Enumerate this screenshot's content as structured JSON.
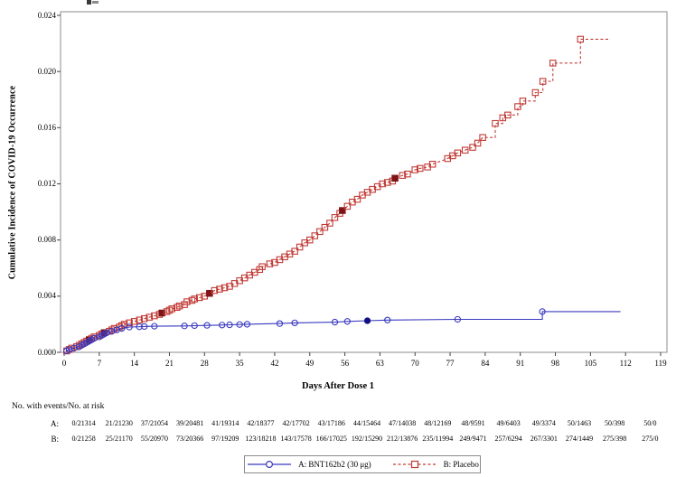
{
  "chart_data": {
    "type": "line",
    "title": "",
    "xlabel": "Days After Dose 1",
    "ylabel": "Cumulative Incidence of COVID-19 Occurrence",
    "xlim": [
      0,
      119
    ],
    "ylim": [
      0,
      0.024
    ],
    "x_ticks": [
      0,
      7,
      14,
      21,
      28,
      35,
      42,
      49,
      56,
      63,
      70,
      77,
      84,
      91,
      98,
      105,
      112,
      119
    ],
    "y_tick_labels": [
      "0.000",
      "0.004",
      "0.008",
      "0.012",
      "0.016",
      "0.020",
      "0.024"
    ],
    "grid": false,
    "legend_position": "bottom-center",
    "point_format": "[day, cumulative_incidence, marker: 0=none 1=open 2=filled(severe)]",
    "series": [
      {
        "name": "B: Placebo",
        "color": "#c13a35",
        "severe_color": "#7e1416",
        "marker": "square",
        "line_style": "dashed",
        "step_render_from_day": 86,
        "extend_flat_to_day": 109,
        "points": [
          [
            0.5,
            0.0001,
            1
          ],
          [
            1,
            0.0002,
            1
          ],
          [
            1.5,
            0.0003,
            1
          ],
          [
            2.5,
            0.0004,
            1
          ],
          [
            3,
            0.0005,
            1
          ],
          [
            3.5,
            0.0006,
            1
          ],
          [
            4,
            0.0007,
            1
          ],
          [
            4.5,
            0.0008,
            1
          ],
          [
            5,
            0.0009,
            2
          ],
          [
            5.5,
            0.001,
            1
          ],
          [
            6,
            0.0011,
            1
          ],
          [
            7,
            0.0012,
            1
          ],
          [
            7.5,
            0.0013,
            1
          ],
          [
            8,
            0.0014,
            2
          ],
          [
            9,
            0.0015,
            1
          ],
          [
            9.5,
            0.0016,
            1
          ],
          [
            10,
            0.0017,
            1
          ],
          [
            11,
            0.0018,
            1
          ],
          [
            11.5,
            0.0019,
            1
          ],
          [
            12,
            0.002,
            1
          ],
          [
            13,
            0.0021,
            1
          ],
          [
            14,
            0.0022,
            1
          ],
          [
            15,
            0.0023,
            1
          ],
          [
            16,
            0.0024,
            1
          ],
          [
            17,
            0.0025,
            1
          ],
          [
            18,
            0.0026,
            1
          ],
          [
            19,
            0.0027,
            1
          ],
          [
            19.5,
            0.0028,
            2
          ],
          [
            20.5,
            0.0029,
            1
          ],
          [
            21,
            0.003,
            1
          ],
          [
            21.5,
            0.0031,
            1
          ],
          [
            22.5,
            0.0032,
            1
          ],
          [
            23,
            0.0033,
            1
          ],
          [
            24,
            0.0034,
            1
          ],
          [
            24.5,
            0.0036,
            1
          ],
          [
            25.5,
            0.0037,
            1
          ],
          [
            26,
            0.0038,
            1
          ],
          [
            27,
            0.0039,
            1
          ],
          [
            28,
            0.004,
            1
          ],
          [
            29,
            0.0042,
            2
          ],
          [
            30,
            0.0044,
            1
          ],
          [
            31,
            0.0045,
            1
          ],
          [
            32,
            0.0046,
            1
          ],
          [
            33,
            0.0047,
            1
          ],
          [
            34,
            0.0049,
            1
          ],
          [
            35,
            0.0051,
            1
          ],
          [
            36,
            0.0053,
            1
          ],
          [
            37,
            0.0055,
            1
          ],
          [
            38,
            0.0057,
            1
          ],
          [
            39,
            0.0059,
            1
          ],
          [
            39.5,
            0.0061,
            1
          ],
          [
            41,
            0.0063,
            1
          ],
          [
            42,
            0.0064,
            1
          ],
          [
            43,
            0.0066,
            1
          ],
          [
            44,
            0.0068,
            1
          ],
          [
            45,
            0.007,
            1
          ],
          [
            46,
            0.0072,
            1
          ],
          [
            47,
            0.0075,
            1
          ],
          [
            48,
            0.0078,
            1
          ],
          [
            49,
            0.008,
            1
          ],
          [
            50,
            0.0083,
            1
          ],
          [
            51,
            0.0086,
            1
          ],
          [
            52,
            0.0089,
            1
          ],
          [
            53,
            0.0092,
            1
          ],
          [
            54,
            0.0096,
            1
          ],
          [
            55,
            0.0099,
            1
          ],
          [
            55.5,
            0.0101,
            2
          ],
          [
            56.5,
            0.0104,
            1
          ],
          [
            57.5,
            0.0107,
            1
          ],
          [
            58.5,
            0.0109,
            1
          ],
          [
            59.5,
            0.0112,
            1
          ],
          [
            60.5,
            0.0114,
            1
          ],
          [
            61.5,
            0.0116,
            1
          ],
          [
            62.5,
            0.0118,
            1
          ],
          [
            63.5,
            0.012,
            1
          ],
          [
            64.5,
            0.0121,
            1
          ],
          [
            65.5,
            0.0122,
            1
          ],
          [
            66,
            0.0124,
            2
          ],
          [
            67.5,
            0.0126,
            1
          ],
          [
            68.5,
            0.0127,
            1
          ],
          [
            70,
            0.013,
            1
          ],
          [
            71,
            0.0131,
            1
          ],
          [
            72.5,
            0.0132,
            1
          ],
          [
            73.5,
            0.0134,
            1
          ],
          [
            76.5,
            0.0138,
            1
          ],
          [
            77.5,
            0.014,
            1
          ],
          [
            78.5,
            0.0142,
            1
          ],
          [
            80,
            0.0144,
            1
          ],
          [
            81.5,
            0.0146,
            1
          ],
          [
            82.5,
            0.0149,
            1
          ],
          [
            83.5,
            0.0153,
            1
          ],
          [
            86,
            0.0163,
            1
          ],
          [
            87.5,
            0.0167,
            1
          ],
          [
            88.5,
            0.0169,
            1
          ],
          [
            90.5,
            0.0175,
            1
          ],
          [
            91.5,
            0.0179,
            1
          ],
          [
            94,
            0.0185,
            1
          ],
          [
            95.5,
            0.0193,
            1
          ],
          [
            97.5,
            0.0206,
            1
          ],
          [
            103,
            0.0223,
            1
          ]
        ]
      },
      {
        "name": "A: BNT162b2 (30 μg)",
        "color": "#3939c0",
        "severe_color": "#101083",
        "marker": "circle",
        "line_style": "solid",
        "step_render_from_day": 80,
        "extend_flat_to_day": 111,
        "points": [
          [
            0.5,
            0.0001,
            1
          ],
          [
            1,
            0.0002,
            1
          ],
          [
            2,
            0.0003,
            1
          ],
          [
            3,
            0.0004,
            1
          ],
          [
            3.5,
            0.0005,
            1
          ],
          [
            4,
            0.0006,
            1
          ],
          [
            4.5,
            0.0007,
            1
          ],
          [
            5,
            0.0008,
            1
          ],
          [
            5.5,
            0.0009,
            1
          ],
          [
            6,
            0.001,
            1
          ],
          [
            7,
            0.0011,
            1
          ],
          [
            7.5,
            0.0012,
            1
          ],
          [
            8,
            0.0013,
            1
          ],
          [
            8.5,
            0.0014,
            1
          ],
          [
            9.5,
            0.0015,
            1
          ],
          [
            10.5,
            0.0016,
            1
          ],
          [
            11.5,
            0.0017,
            1
          ],
          [
            13,
            0.0018,
            1
          ],
          [
            15,
            0.00182,
            1
          ],
          [
            16,
            0.00184,
            1
          ],
          [
            18,
            0.00186,
            1
          ],
          [
            24,
            0.00188,
            1
          ],
          [
            26,
            0.0019,
            1
          ],
          [
            28.5,
            0.00192,
            1
          ],
          [
            31.5,
            0.00194,
            1
          ],
          [
            33,
            0.00196,
            1
          ],
          [
            35,
            0.00198,
            1
          ],
          [
            36.5,
            0.002,
            1
          ],
          [
            43,
            0.00205,
            1
          ],
          [
            46,
            0.0021,
            1
          ],
          [
            54,
            0.00215,
            1
          ],
          [
            56.5,
            0.0022,
            1
          ],
          [
            60.5,
            0.00225,
            2
          ],
          [
            64.5,
            0.0023,
            1
          ],
          [
            78.5,
            0.00235,
            1
          ],
          [
            95.4,
            0.0029,
            1
          ]
        ]
      }
    ]
  },
  "risk_table": {
    "title": "No. with events/No. at risk",
    "rows": [
      {
        "label": "A:",
        "values": [
          "0/21314",
          "21/21230",
          "37/21054",
          "39/20481",
          "41/19314",
          "42/18377",
          "42/17702",
          "43/17186",
          "44/15464",
          "47/14038",
          "48/12169",
          "48/9591",
          "49/6403",
          "49/3374",
          "50/1463",
          "50/398",
          "50/0"
        ]
      },
      {
        "label": "B:",
        "values": [
          "0/21258",
          "25/21170",
          "55/20970",
          "73/20366",
          "97/19209",
          "123/18218",
          "143/17578",
          "166/17025",
          "192/15290",
          "212/13876",
          "235/11994",
          "249/9471",
          "257/6294",
          "267/3301",
          "274/1449",
          "275/398",
          "275/0"
        ]
      }
    ]
  },
  "legend": {
    "items": [
      {
        "label": "A: BNT162b2 (30 μg)"
      },
      {
        "label": "B: Placebo"
      }
    ]
  }
}
